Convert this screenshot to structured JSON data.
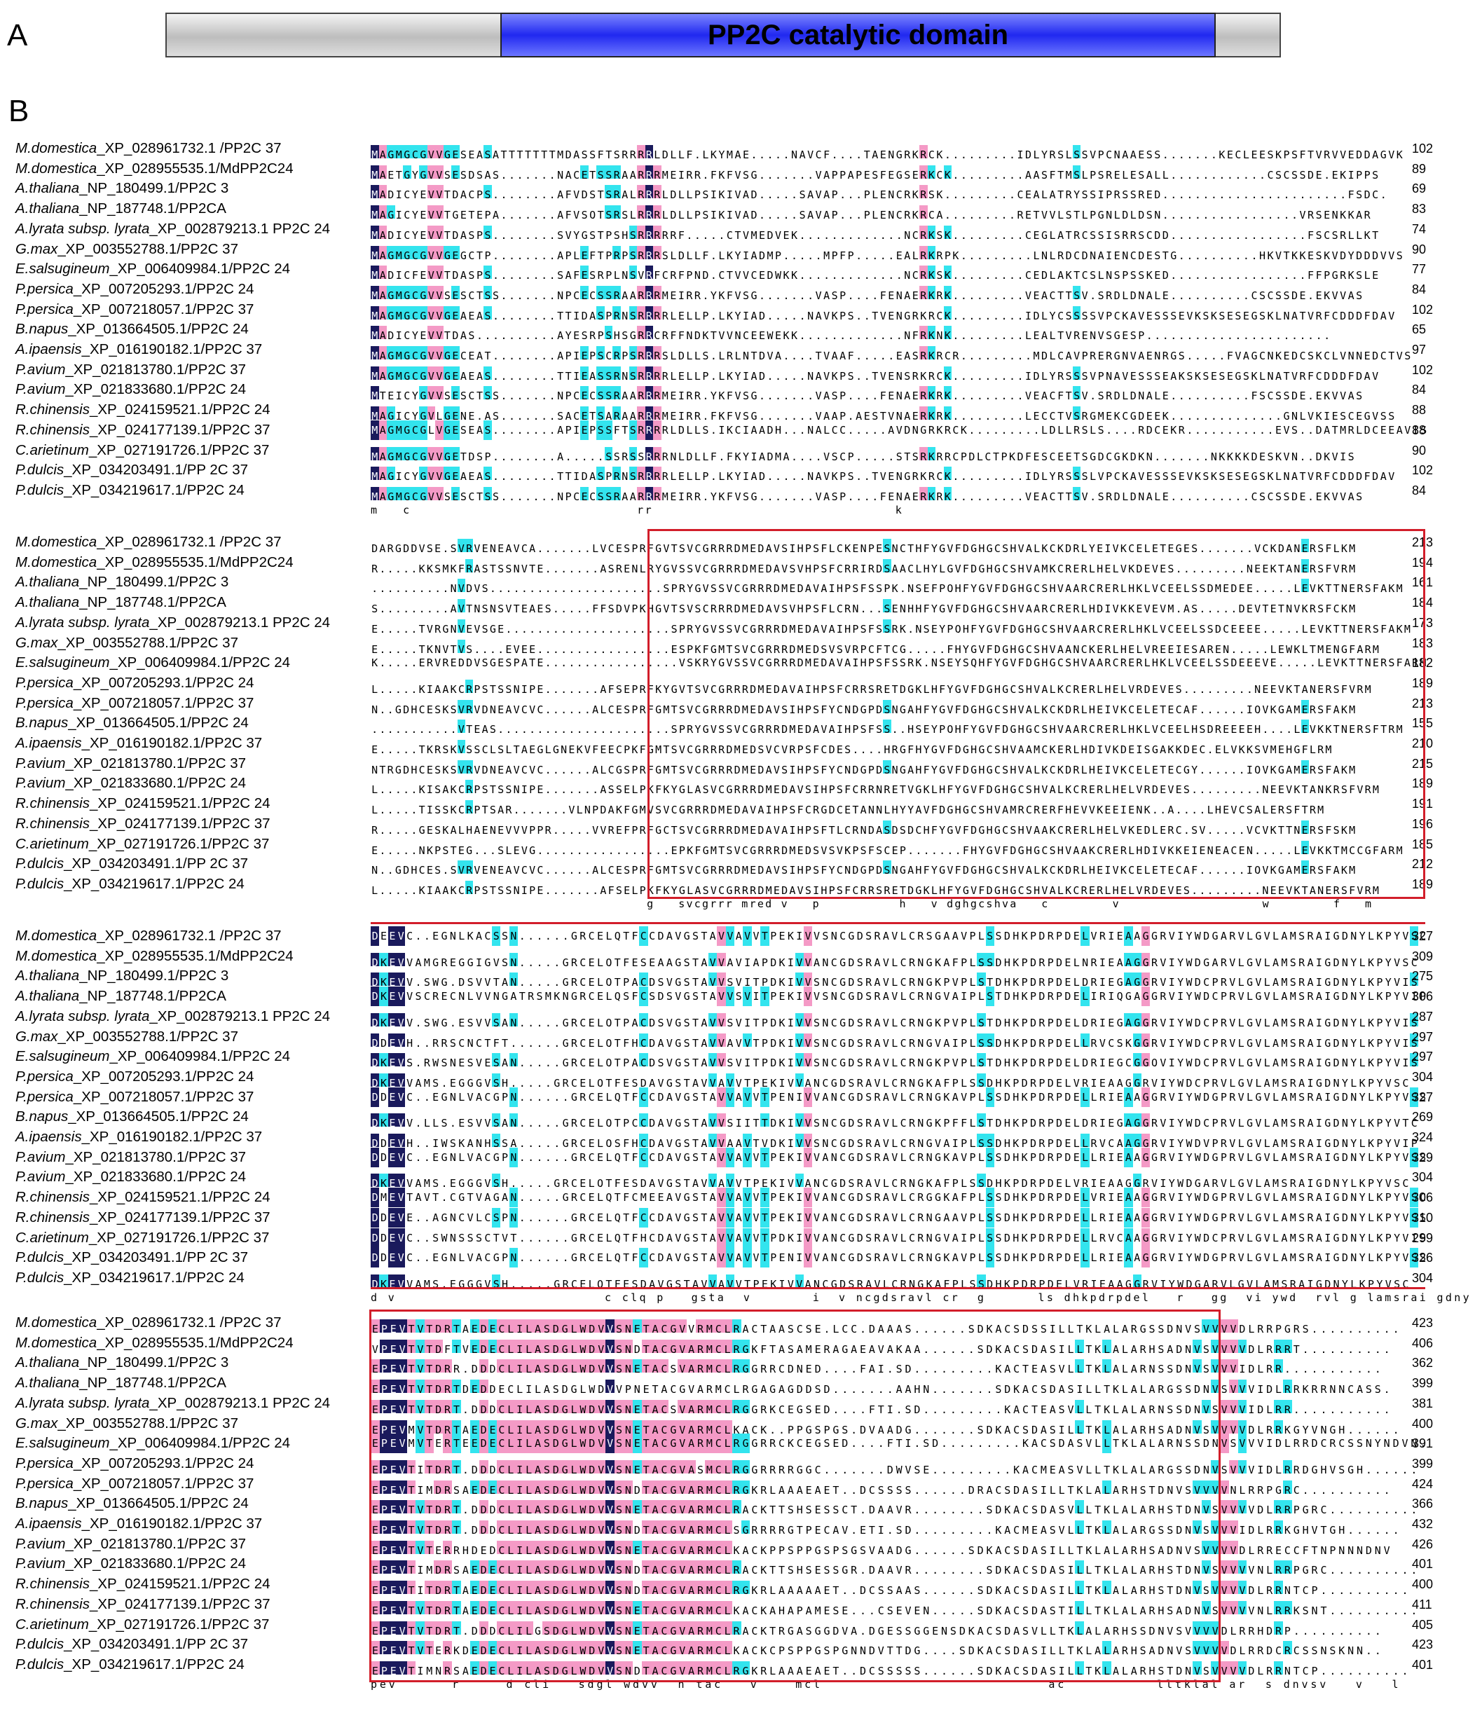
{
  "panels": {
    "a_label": "A",
    "b_label": "B"
  },
  "domain": {
    "label": "PP2C catalytic domain",
    "color": "#2a30f0",
    "flank_color": "#cfcfcf"
  },
  "colors": {
    "identical": "#1a1a5c",
    "high": "#f49ac6",
    "medium": "#33e4ee",
    "box": "#d21e2a"
  },
  "species": [
    {
      "genus": "M.domestica",
      "acc": "_XP_028961732.1 /PP2C 37"
    },
    {
      "genus": "M.domestica",
      "acc": "_XP_028955535.1/MdPP2C24"
    },
    {
      "genus": "A.thaliana",
      "acc": "_NP_180499.1/PP2C 3"
    },
    {
      "genus": "A.thaliana",
      "acc": "_NP_187748.1/PP2CA"
    },
    {
      "genus": "A.lyrata subsp. lyrata",
      "acc": "_XP_002879213.1 PP2C 24"
    },
    {
      "genus": "G.max",
      "acc": "_XP_003552788.1/PP2C 37"
    },
    {
      "genus": "E.salsugineum",
      "acc": "_XP_006409984.1/PP2C 24"
    },
    {
      "genus": "P.persica",
      "acc": "_XP_007205293.1/PP2C 24"
    },
    {
      "genus": "P.persica",
      "acc": "_XP_007218057.1/PP2C 37"
    },
    {
      "genus": "B.napus",
      "acc": "_XP_013664505.1/PP2C 24"
    },
    {
      "genus": "A.ipaensis",
      "acc": "_XP_016190182.1/PP2C 37"
    },
    {
      "genus": "P.avium",
      "acc": "_XP_021813780.1/PP2C 37"
    },
    {
      "genus": "P.avium",
      "acc": "_XP_021833680.1/PP2C 24"
    },
    {
      "genus": "R.chinensis",
      "acc": "_XP_024159521.1/PP2C 24"
    },
    {
      "genus": "R.chinensis",
      "acc": "_XP_024177139.1/PP2C 37"
    },
    {
      "genus": "C.arietinum",
      "acc": "_XP_027191726.1/PP2C 37"
    },
    {
      "genus": "P.dulcis",
      "acc": "_XP_034203491.1/PP 2C 37"
    },
    {
      "genus": "P.dulcis",
      "acc": "_XP_034219617.1/PP2C 24"
    }
  ],
  "blocks": [
    {
      "numbers": [
        "102",
        "89",
        "69",
        "83",
        "74",
        "90",
        "77",
        "84",
        "102",
        "65",
        "97",
        "102",
        "84",
        "88",
        "88",
        "90",
        "102",
        "84"
      ],
      "consensus": "m   c                            rr                              k",
      "rows": [
        "MAGMGCGVVGESEASATTTTTTTMDASSFTSRRRRLDLLF.LKYMAE.....NAVCF....TAENGRKRCK.........IDLYRSLSSVPCNAAESS.......KECLEESKPSFTVRVVEDDAGVK",
        "MAETGYGVVSESDSAS.......NACETSSRAARRRMEIRR.FKFVSG.......VAPPAPESFEGSERKCK.........AASFTMSLPSRELESALL............CSCSSDE.EKIPPS",
        "MADICYEVVTDACPS........AFVDSTSRALRRRLDLLPSIKIVAD.....SAVAP...PLENCRKRSK.........CEALATRYSSIPRSSRED.......................FSDC.",
        "MAGICYEVVTGETEPA.......AFVSQTSRSLRRRLDLLPSIKIVAD.....SAVAP...PLENCRKRCA.........RETVVLSTLPGNLDLDSN.................VRSENKKAR",
        "MADICYEVVTDASPS........SVYGSTPSHSRRRRRF.....CTVMEDVEK.............NCRKSK.........CEGLATRCSSISRRSCDD.................FSCSRLLKT",
        "MAGMGCGVVGEGCTP........APLEFTPRPSRRRSLDLLF.LKYIADMP.....MPFP.....EALRKRPK.........LNLRDCDNAIENCDESTG..........HKVTKKESKVDYDDDVVS",
        "MADICFEVVTDASPS........SAFESRPLNSVRFCRFPND.CTVVCEDWKK.............NCRKSK.........CEDLAKTCSLNSPSSKED.................FFPGRKSLE",
        "MAGMGCGVVSESCTSS.......NPCECSSRAARRRMEIRR.YKFVSG.......VASP....FENAERKRK.........VEACTTSV.SRDLDNALE..........CSCSSDE.EKVVAS",
        "MAGMGCGVVGEAEAS........TTIDASPRNSRRRRLELLP.LKYIAD.....NAVKPS..TVENGRKRCK.........IDLYCSSSSVPCKAVESSSEVKSKSESEGSKLNATVRFCDDDFDAV",
        "MADICYEVVTDAS..........AYESRPSHSGRRCRFFNDKTVVNCEEWEKK.............NFRKNK.........LEALTVRENVSGESP.......................",
        "MAGMGCGVVGECEAT........APIEPSCRPSRRRSLDLLS.LRLNTDVA....TVAAF.....EASRKRCR.........MDLCAVPRERGNVAENRGS.....FVAGCNKEDCSKCLVNNEDCTVS",
        "MAGMGCGVVGEAEAS........TTIEASSRNSRRRRLELLP.LKYIAD.....NAVKPS..TVENSRKRCK.........IDLYRSSSVPNAVESSSEAKSKSESEGSKLNATVRFCDDDFDAV",
        "MTEICYGVVSESCTSS.......NPCECSSRAARRRMEIRR.YKFVSG.......VASP....FENAERKRK.........VEACFTSV.SRDLDNALE..........FSCSSDE.EKVVAS",
        "MAGICYGVLGENE.AS.......SACETSARAARRRMEIRR.FKFVSG.......VAAP.AESTVNAERKRK.........LECCTVSRGMEKCGDEEK..............GNLVKIESCEGVSS",
        "MAGMGCGLVGESEAS........APIEPSSFTSRRRRLDLLS.IKCIAADH...NALCC.....AVDNGRKRCK.........LDLLRSLS....RDCEKR...........EVS..DATMRLDCEEAVIS",
        "MAGMGCGVVGETDSP........A.....SSRSSRRRNLDLLF.FKYIADMA....VSCP.....STSRKRRCPDLCTPKDFESCEETSGDCGKDKN.......NKKKKDESKVN..DKVIS",
        "MAGICYGVVGEAEAS........TTIDASPRNSRRRRLELLP.LKYIAD.....NAVKPS..TVENGRKRCK.........IDLYRSSSLVPCKAVESSSEVKSKSESEGSKLNATVRFCDDDFDAV",
        "MAGMGCGVVSESCTSS.......NPCECSSRAARRRMEIRR.YKFVSG.......VASP....FENAERKRK.........VEACTTSV.SRDLDNALE..........CSCSSDE.EKVVAS"
      ]
    },
    {
      "numbers": [
        "213",
        "194",
        "161",
        "184",
        "173",
        "183",
        "182",
        "189",
        "213",
        "155",
        "210",
        "215",
        "189",
        "191",
        "196",
        "185",
        "212",
        "189"
      ],
      "consensus": "                                   g   svcgrrr mred v   p          h   v dghgcshva   c        v                  w        f   m",
      "rows": [
        "DARGDDVSE.SVRVENEAVCA.......LVCESPRFGVTSVCGRRRDMEDAVSIHPSFLCKENPESNCTHFYGVFDGHGCSHVALKCKDRLYEIVKCELETEGES.......VCKDANERSFLKM",
        "R.....KKSMKFRASTSSNVTE.......ASRENLRYGVSSVCGRRRDMEDAVSVHPSFCRRIRDSAACLHYLGVFDGHGCSHVAMKCRERLHELVKDEVES.........NEEKTANERSFVRM",
        "..........NVDVS......................SPRYGVSSVCGRRRDMEDAVAIHPSFSSPK.NSEFPQHFYGVFDGHGCSHVAARCRERLHKLVCEELSSDMEDEE.....LEVKTTNERSFAKM",
        "S.........AVTNSNSVTEAES.....FFSDVPKHGVTSVSCRRRDMEDAVSVHPSFLCRN...SENHHFYGVFDGHGCSHVAARCRERLHDIVKKEVEVM.AS.....DEVTETNVKRSFCKM",
        "E.....TVRGNVEVSGE.....................SPRYGVSSVCGRRRDMEDAVAIHPSFSSRK.NSEYPQHFYGVFDGHGCSHVAARCRERLHKLVCEELSSDCEEEE.....LEVKTTNERSFAKM",
        "E.....TKNVTVS....EVEE.................ESPKFGMTSVCGRRRDMEDSVSVRPCFTCG.....FHYGVFDGHGCSHVAANCKERLHELVREEIESAREN.....LEWKLTMENGFARM",
        "K.....ERVREDDVSGESPATE.................VSKRYGVSSVCGRRRDMEDAVAIHPSFSSRK.NSEYSQHFYGVFDGHGCSHVAARCRERLHKLVCEELSSDEEEVE.....LEVKTTNERSFARM",
        "L.....KIAAKCRPSTSSNIPE.......AFSEPRFKYGVTSVCGRRRDMEDAVAIHPSFCRRSRETDGKLHFYGVFDGHGCSHVALKCRERLHELVRDEVES.........NEEVKTANERSFVRM",
        "N..GDHCESKSVRVDNEAVCVC......ALCESPRFGMTSVCGRRRDMEDAVSIHPSFYCNDGPDSNGAHFYGVFDGHGCSHVALKCKDRLHEIVKCELETECAF......IQVKGAMERSFAKM",
        "...........VTEAS......................SPRYGVSSVCGRRRDMEDAVAIHPSFSS..HSEYPQHFYGVFDGHGCSHVAARCRERLHKLVCEELHSDREEEEH....LEVKKTNERSFTRM",
        "E.....TKRSKVSSCLSLTAEGLGNEKVFEECPKFGMTSVCGRRRDMEDSVCVRPSFCDES....HRGFHYGVFDGHGCSHVAAMCKERLHDIVKDEISGAKKDEC.ELVKKSVMEHGFLRM",
        "NTRGDHCESKSVRVDNEAVCVC......ALCGSPRFGMTSVCGRRRDMEDAVSIHPSFYCNDGPDSNGAHFYGVFDGHGCSHVALKCKDRLHEIVKCELETECGY......IQVKGAMERSFAKM",
        "L.....KISAKCRPSTSSNIPE.......ASSELPKFKYGLASVCGRRRDMEDAVSIHPSFCRRNRETVGKLHFYGVFDGHGCSHVALKCRERLHELVRDEVES.........NEEVKTANKRSFVRM",
        "L.....TISSKCRPTSAR.......VLNPDAKFGMVSVCGRRRDMEDAVAIHPSFCRGDCETANNLHYYAVFDGHGCSHVAMRCRERFHEVVKEEIENK..A....LHEVCSALERSFTRM",
        "R.....GESKALHAENEVVVPPR.....VVREFPRFGCTSVCGRRRDMEDAVAIHPSFTLCRNDASDSDCHFYGVFDGHGCSHVAAKCRERLHELVKEDLERC.SV.....VCVKTTNERSFSKM",
        "E.....NKPSTEG...SLEVG.................EPKFGMTSVCGRRRDMEDSVSVKPSFSCEP.......FHYGVFDGHGCSHVAAKCRERLHDIVKKEIENEACEN.....LEVKKTMCCGFARM",
        "N..GDHCES.SVRVENEAVCVC......ALCESPRFGMTSVCGRRRDMEDAVSIHPSFYCNDGPDSNGAHFYGVFDGHGCSHVALKCKDRLHEIVKCELETECAF......IQVKGAMERSFAKM",
        "L.....KIAAKCRPSTSSNIPE.......AFSELPKFKYGLASVCGRRRDMEDAVSIHPSFCRRSRETDGKLHFYGVFDGHGCSHVALKCRERLHELVRDEVES.........NEEVKTANERSFVRM"
      ]
    },
    {
      "numbers": [
        "327",
        "309",
        "275",
        "306",
        "287",
        "297",
        "297",
        "304",
        "327",
        "269",
        "324",
        "329",
        "304",
        "306",
        "310",
        "299",
        "326",
        "304"
      ],
      "consensus": "d v                        c clq p   gsta  v       i  v ncgdsravl cr  g      ls dhkpdrpdel   r   gg  vi ywd  rvl g lamsrai gdny  kpyv",
      "rows": [
        "DEEVC..EGNLKACSSN......GRCELQTFCCDAVGSTAVVAVVTPEKIVVSNCGDSRAVLCRSGAAVPLSSDHKPDRPDELVRIEAAGGRVIYWDGARVLGVLAMSRAIGDNYLKPYVSC",
        "DKEVVAMGREGGIGVSN.....GRCELQTFESEAAGSTAVVAVIAPDKIVVANCGDSRAVLCRNGKAFPLSSDHKPDRPDELNRIEAAGGRVIYWDGARVLGVLAMSRAIGDNYLKPYVSC",
        "DKEVV.SWG.DSVVTAN.....GRCELQTPACDSVGSTAVVSVITPDKIVVSNCGDSRAVLCRNGKPVPLSTDHKPDRPDELDRIEGAGGRVIYWDCPRVLGVLAMSRAIGDNYLKPYVIS",
        "DKEVVSCRECNLVVNGATRSMKNGRCELQSFCSDSVGSTAVVSVITPEKIVVSNCGDSRAVLCRNGVAIPLSTDHKPDRPDELIRIQGAGGRVIYWDCPRVLGVLAMSRAIGDNYLKPYVIP",
        "DKEVV.SWG.ESVVSAN.....GRCELQTPACDSVGSTAVVSVITPDKIVVSNCGDSRAVLCRNGKPVPLSTDHKPDRPDELDRIEGAGGRVIYWDCPRVLGVLAMSRAIGDNYLKPYVIS",
        "DDEVH..RRSCNCTFT......GRCELQTFHCDAVGSTAVVAVVTPDKIVVSNCGDSRAVLCRNGVAIPLSSDHKPDRPDELLRVCSKGGRVIYWDCPRVLGVLAMSRAIGDNYLKPYVIS",
        "DKEVS.RWSNESVESAN.....GRCELQTPACDSVGSTAVVSVITPDKIVVSNCGDSRAVLCRNGKPVPLSTDHKPDRPDELDRIEGCGGQVIYWDCPRVLGVLAMSRAIGDNYLKPYVIS",
        "DKEVVAMS.EGGGVSH.....GRCELQTFESDAVGSTAVVAVVTPEKIVVANCGDSRAVLCRNGKAFPLSSDHKPDRPDELVRIEAAGGRVIYWDCPRVLGVLAMSRAIGDNYLKPYVSC",
        "DDEVC..EGNLVACGPN......GRCELQTFCCDAVGSTAVVAVVTPENIVVANCGDSRAVLCRNGKAVPLSSDHKPDRPDELLRIEAAGGRVIYWDGPRVLGVLAMSRAIGDNYLKPYVSS",
        "DKEVV.LLS.ESVVSAN.....GRCELQTPCCDAVGSTAVVSIITTDKIVVSNCGDSRAVLCRNGKPFFLSTDHKPDRPDELDRIEGAGGRVIYWDCPRVLGVLAMSRAIGDNYLKPYVTC",
        "DDEVH..IWSKANHSSA.....GRCELQSFHCDAVGSTAVVAAVTVDKIVVSNCGDSRAVLCRNGVAIPLSSDHKPDRPDELLRVCAAGGRVIYWDVPRVLGVLAMSRAIGDNYLKPYVIP",
        "DDEVC..EGNLVACGPN......GRCELQTFCCDAVGSTAVVAVVTPEKIVVANCGDSRAVLCRNGKAVPLSSDHKPDRPDELLRIEAAGGRVIYWDGPRVLGVLAMSRAIGDNYLKPYVSS",
        "DKEVVAMS.EGGGVSH.....GRCELQTFESDAVGSTAVVAVVTPEKIVVANCGDSRAVLCRNGKAFPLSSDHKPDRPDELVRIEAAGGRVIYWDGARVLGVLAMSRAIGDNYLKPYVSC",
        "DMEVTAVT.CGTVAGAN.....GRCELQTFCMEEAVGSTAVVAVVTPEKIVVANCGDSRAVLCRGGKAFPLSSDHKPDRPDELVRIEAAGGRVIYWDGPRVLGVLAMSRAIGDNYLKPYVSC",
        "DDEVE..AGNCVLCSPN......GRCELQTFCCDAVGSTAVVAVVTPEKIVVANCGDSRAVLCRNGAAVPLSSDHKPDRPDELLRIEAAGGRVIYWDGPRVLGVLAMSRAIGDNYLKPYVSS",
        "DDEVC..SWNSSSCTVT......GRCELQTFHCDAVGSTAVVAVVTPDKIVVANCGDSRAVLCRNGVAIPLSSDHKPDRPDELLRVCAAGGRVIYWDCPRVLGVLAMSRAIGDNYLKPYVIS",
        "DDEVC..EGNLVACGPN......GRCELQTFCCDAVGSTAVVAVVTPENIVVANCGDSRAVLCRNGKAVPLSSDHKPDRPDELLRIEAAGGRVIYWDGPRVLGVLAMSRAIGDNYLKPYVSS",
        "DKEVVAMS.EGGGVSH.....GRCELQTFESDAVGSTAVVAVVTPEKIVVANCGDSRAVLCRNGKAFPLSSDHKPDRPDELVRIEAAGGRVIYWDGARVLGVLAMSRAIGDNYLKPYVSC"
      ]
    },
    {
      "numbers": [
        "423",
        "406",
        "362",
        "399",
        "381",
        "400",
        "391",
        "399",
        "424",
        "366",
        "432",
        "426",
        "401",
        "400",
        "411",
        "405",
        "423",
        "401"
      ],
      "consensus": "pev      r     d cli   sdgl wdvv  n tac   v    mcl                         ac          lltklal ar  s dnvsv   v   l",
      "rows": [
        "EPEVTVTDRTAEDECLILASDGLWDVVSNETACGVVRMCLRACTAASCSE.LCC.DAAAS......SDKACSDSSILLTKLALARGSSDNVSVVVVDLRRPGRS..........",
        "VPEVTVTDFTVEDECLILASDGLWDVVSNDTACGVARMCLRGKFTASAMERAGAEAVAKAA......SDKACSDASILLTKLALARHSADNVSVVVVDLRRRT..........",
        "EPEVTVTDRR.DDDCLILASDGLWDVVSNETACSVARMCLRGGRRCDNED....FAI.SD.........KACTEASVLLTKLALARNSSDNVSVVVIDLRR...........",
        "EPEVTVTDRTDEDDECLILASDGLWDVVPNETACGVARMCLRGAGAGDDSD.......AAHN.......SDKACSDASILLTKLALARGSSDNVSVVVIDLRRKRRNNCASS.",
        "EPEVTVTDRT.DDDCLILASDGLWDVVSNETACSVARMCLRGGRKCEGSED....FTI.SD.........KACTEASVLLTKLALARNSSDNVSVVVIDLRR...........",
        "EPEVMVTDRTAEDECLILASDGLWDVVSNETACGVARMCLKACK..PPGSPGS.DVAADG.......SDKACSDASILLTKLALARHSADNVSVVVVDLRRKGYVNGH......",
        "EPEVMVTERTEEDECLILASDGLWDVVSNETACGVARMCLRGGRRCKCEGSED....FTI.SD.........KACSDASVLLTKLALARNSSDNVSVVVIDLRRDCRCSSNYNDVN.",
        "EPEVTITDRT.DDDCLILASDGLWDVVSNETACGVASMCLRGGRRRRGGC.......DWVSE.........KACMEASVLLTKLALARGSSDNVSVVVIDLRRDGHVSGH......",
        "EPEVTIMDRSAEDECLILASDGLWDVVSNDTACGVARMCLRGKRLAAAEAET..DCSSSS......DRACSDASILLTKLALARHSTDNVSVVVVNLRRPGRC..........",
        "EPEVTVTDRT.DDDCLILASDGLWDVVSNETACGVARMCLRACKTTSHSESSCT.DAAVR........SDKACSDASVLLTKLALARHSTDNVSVVVVDLRRPGRC..........",
        "EPEVTVTDRT.DDDCLILASDGLWDVVSNDTACGVARMCLSGRRRRGTPECAV.ETI.SD.........KACMEASVLLTKLALARGSSDNVSVVVIDLRRKGHVTGH......",
        "EPEVTVTERRHDEDCLILASDGLWDVVSNETACGVARMCLKACKPPSPPGSPSGSVAADG......SDKACSDASILLTKLALARHSADNVSVVVVDLRRECCFTNPNNNDNV",
        "EPEVTIMDRSAEDECLILASDGLWDVVSNDTACGVARMCLRACKTTSHSESSGR.DAAVR........SDKACSDASILLTKLALARHSTDNVSVVVVNLRRPGRC..........",
        "EPEVTITDRTAEDECLILASDGLWDVVSNDTACGVARMCLRGKRLAAAAAET..DCSSAAS......SDKACSDASILLTKLALARHSTDNVSVVVVDLRRNTCP..........",
        "EPEVTVTDRTAEDECLILASDGLWDVVSNETACGVARMCLKACKAHAPAMESE...CSEVEN.....SDKACSDASTILLTKLALARHSADNVSVVVVNLRRKSNT..........",
        "EPEVTVTDRT.DDDCLILGSDGLWDVVSNETACGVARMCLRACKTRGASGGDVA.DGESSGGENSDKACSDASVLLTKLALARHSSDNVSVVVVDLRRHDRP..........",
        "EPEVTVTERKDEDECLILASDGLWDVVSNETACGVARMCLKACKCPSPPGSPGNNDVTTDG....SDKACSDASILLTKLALARHSADNVSVVVVDLRRDCRCSSNSKNN..",
        "EPEVTIMNRSAEDECLILASDGLWDVVSNDTACGVARMCLRGKRLAAAEAET..DCSSSSS......SDKACSDASILLTKLALARHSTDNVSVVVVDLRRNTCP.........."
      ]
    }
  ]
}
